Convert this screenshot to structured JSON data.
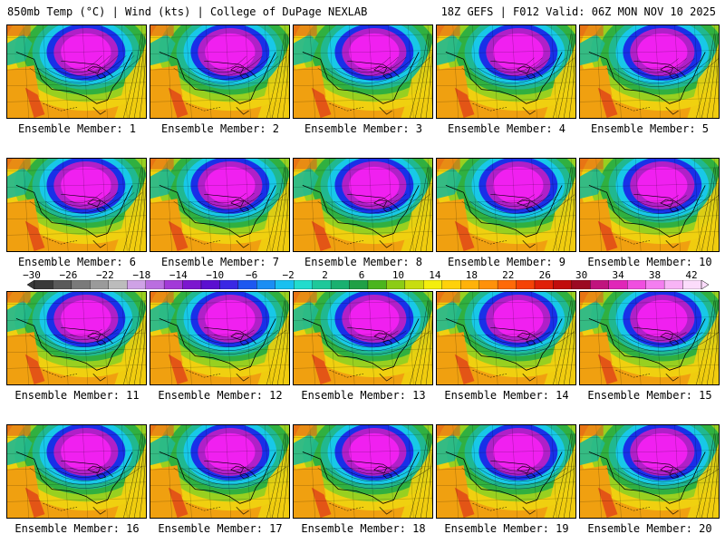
{
  "header": {
    "left": "850mb Temp (°C) | Wind (kts) | College of DuPage NEXLAB",
    "right": "18Z GEFS | F012 Valid: 06Z MON NOV 10 2025"
  },
  "members": [
    {
      "label": "Ensemble Member: 1"
    },
    {
      "label": "Ensemble Member: 2"
    },
    {
      "label": "Ensemble Member: 3"
    },
    {
      "label": "Ensemble Member: 4"
    },
    {
      "label": "Ensemble Member: 5"
    },
    {
      "label": "Ensemble Member: 6"
    },
    {
      "label": "Ensemble Member: 7"
    },
    {
      "label": "Ensemble Member: 8"
    },
    {
      "label": "Ensemble Member: 9"
    },
    {
      "label": "Ensemble Member: 10"
    },
    {
      "label": "Ensemble Member: 11"
    },
    {
      "label": "Ensemble Member: 12"
    },
    {
      "label": "Ensemble Member: 13"
    },
    {
      "label": "Ensemble Member: 14"
    },
    {
      "label": "Ensemble Member: 15"
    },
    {
      "label": "Ensemble Member: 16"
    },
    {
      "label": "Ensemble Member: 17"
    },
    {
      "label": "Ensemble Member: 18"
    },
    {
      "label": "Ensemble Member: 19"
    },
    {
      "label": "Ensemble Member: 20"
    }
  ],
  "colorbar": {
    "labels": [
      "−30",
      "−26",
      "−22",
      "−18",
      "−14",
      "−10",
      "−6",
      "−2",
      "2",
      "6",
      "10",
      "14",
      "18",
      "22",
      "26",
      "30",
      "34",
      "38",
      "42"
    ],
    "colors": [
      "#3a3a3a",
      "#5a5a5a",
      "#7a7a7a",
      "#9a9a9a",
      "#bcbcbc",
      "#cfa2e6",
      "#ba6ee0",
      "#a23ad8",
      "#7c16cf",
      "#5b0fd0",
      "#3a28e4",
      "#1d58f0",
      "#1a8ef4",
      "#19c0f0",
      "#22dccd",
      "#1ec89a",
      "#1ab070",
      "#20a046",
      "#4bb51e",
      "#8ccc15",
      "#c8dd10",
      "#f4ee0e",
      "#ffd10a",
      "#ffb20a",
      "#ff910a",
      "#ff6a08",
      "#f54206",
      "#e01f08",
      "#c10c0c",
      "#9c0a22",
      "#c0147e",
      "#e026b8",
      "#f04ee0",
      "#f47ef0",
      "#f8b4f6",
      "#fcdcfb"
    ]
  },
  "palette": {
    "purple": "#b020c8",
    "magenta": "#f020f0",
    "blue": "#1830e8",
    "cyan": "#18c8e8",
    "teal": "#20b890",
    "green": "#30b040",
    "lime": "#98d020",
    "yellow": "#f0d010",
    "orange": "#f0a010",
    "red": "#e04818"
  }
}
